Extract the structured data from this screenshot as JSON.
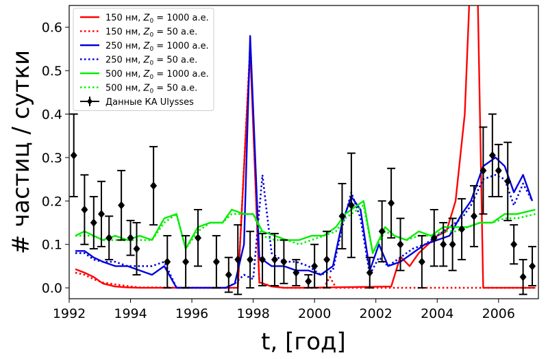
{
  "chart_data": {
    "type": "line",
    "xlabel": "t, [год]",
    "ylabel": "# частиц / сутки",
    "xlim": [
      1992,
      2007.3
    ],
    "ylim": [
      -0.025,
      0.65
    ],
    "xticks": [
      "1992",
      "1994",
      "1996",
      "1998",
      "2000",
      "2002",
      "2004",
      "2006"
    ],
    "yticks": [
      "0.0",
      "0.1",
      "0.2",
      "0.3",
      "0.4",
      "0.5",
      "0.6"
    ],
    "legend_position": "top-left",
    "series": [
      {
        "name": "150 нм, Z0 = 1000 а.е.",
        "label_main": "150 нм, ",
        "label_sub": "0",
        "label_rest": " = 1000 а.е.",
        "color": "#ff0000",
        "style": "solid",
        "x": [
          1992.2,
          1992.5,
          1992.8,
          1993.1,
          1993.5,
          1993.9,
          1994.3,
          1997.5,
          1997.9,
          1998.2,
          1998.6,
          1999,
          1999.6,
          2002.5,
          2002.8,
          2003.1,
          2003.4,
          2003.7,
          2004,
          2004.3,
          2004.6,
          2004.9,
          2005.1,
          2005.3,
          2005.5,
          2007.2
        ],
        "y": [
          0.043,
          0.035,
          0.025,
          0.01,
          0.003,
          0.001,
          0.0,
          0.0,
          0.55,
          0.013,
          0.003,
          0.0,
          0.0,
          0.003,
          0.072,
          0.05,
          0.08,
          0.1,
          0.12,
          0.13,
          0.2,
          0.4,
          0.75,
          0.75,
          0.0,
          0.0
        ]
      },
      {
        "name": "150 нм, Z0 = 50 а.е.",
        "label_main": "150 нм, ",
        "label_sub": "0",
        "label_rest": " = 50 а.е.",
        "color": "#ff0000",
        "style": "dotted",
        "x": [
          1992.2,
          1992.5,
          1992.8,
          1993.1,
          1993.5,
          1993.9,
          1994.3,
          1997.5,
          1997.9,
          1998.2,
          1998.6,
          1999,
          2000.3,
          2000.5,
          2000.7,
          2007.2
        ],
        "y": [
          0.035,
          0.03,
          0.02,
          0.012,
          0.008,
          0.004,
          0.001,
          0.0,
          0.56,
          0.012,
          0.004,
          0.0,
          0.0,
          0.025,
          0.0,
          0.0
        ]
      },
      {
        "name": "250 нм, Z0 = 1000 а.е.",
        "label_main": "250 нм, ",
        "label_sub": "0",
        "label_rest": " = 1000 а.е.",
        "color": "#0000dd",
        "style": "solid",
        "x": [
          1992.2,
          1992.5,
          1992.8,
          1993.1,
          1993.5,
          1993.9,
          1994.3,
          1994.7,
          1995.1,
          1995.5,
          1997.1,
          1997.4,
          1997.7,
          1997.9,
          1998.2,
          1998.6,
          1999,
          1999.4,
          1999.8,
          2000.2,
          2000.6,
          2000.9,
          2001.2,
          2001.5,
          2001.8,
          2002.1,
          2002.4,
          2002.8,
          2003.2,
          2003.6,
          2004.0,
          2004.4,
          2004.8,
          2005.1,
          2005.5,
          2005.9,
          2006.2,
          2006.5,
          2006.8,
          2007.1
        ],
        "y": [
          0.085,
          0.085,
          0.07,
          0.06,
          0.05,
          0.05,
          0.04,
          0.03,
          0.05,
          0.0,
          0.0,
          0.01,
          0.1,
          0.58,
          0.07,
          0.05,
          0.05,
          0.04,
          0.04,
          0.03,
          0.05,
          0.15,
          0.21,
          0.18,
          0.04,
          0.1,
          0.05,
          0.06,
          0.08,
          0.1,
          0.11,
          0.12,
          0.17,
          0.2,
          0.28,
          0.3,
          0.28,
          0.22,
          0.26,
          0.2
        ]
      },
      {
        "name": "250 нм, Z0 = 50 а.е.",
        "label_main": "250 нм, ",
        "label_sub": "0",
        "label_rest": " = 50 а.е.",
        "color": "#0000dd",
        "style": "dotted",
        "x": [
          1992.2,
          1992.5,
          1992.8,
          1993.1,
          1993.5,
          1993.9,
          1994.3,
          1994.7,
          1995.1,
          1995.5,
          1997.1,
          1997.4,
          1997.7,
          1998.0,
          1998.3,
          1998.6,
          1999,
          1999.4,
          1999.8,
          2000.2,
          2000.6,
          2000.9,
          2001.2,
          2001.5,
          2001.8,
          2002.1,
          2002.4,
          2002.8,
          2003.2,
          2003.6,
          2004.0,
          2004.4,
          2004.8,
          2005.1,
          2005.5,
          2005.9,
          2006.2,
          2006.5,
          2006.8,
          2007.1
        ],
        "y": [
          0.08,
          0.08,
          0.065,
          0.06,
          0.06,
          0.05,
          0.05,
          0.05,
          0.06,
          0.0,
          0.0,
          0.01,
          0.03,
          0.02,
          0.26,
          0.08,
          0.06,
          0.06,
          0.05,
          0.03,
          0.04,
          0.14,
          0.22,
          0.16,
          0.03,
          0.07,
          0.05,
          0.07,
          0.09,
          0.1,
          0.12,
          0.14,
          0.16,
          0.19,
          0.25,
          0.26,
          0.25,
          0.19,
          0.24,
          0.2
        ]
      },
      {
        "name": "500 нм, Z0 = 1000 а.е.",
        "label_main": "500 нм, ",
        "label_sub": "0",
        "label_rest": " = 1000 а.е.",
        "color": "#00ee00",
        "style": "solid",
        "x": [
          1992.2,
          1992.5,
          1992.8,
          1993.1,
          1993.5,
          1993.9,
          1994.3,
          1994.7,
          1995.1,
          1995.5,
          1995.8,
          1996.2,
          1996.6,
          1997.0,
          1997.3,
          1997.7,
          1998.0,
          1998.3,
          1998.7,
          1999.1,
          1999.5,
          1999.9,
          2000.3,
          2000.7,
          2001.0,
          2001.4,
          2001.6,
          2001.9,
          2002.3,
          2002.6,
          2003.0,
          2003.4,
          2003.8,
          2004.2,
          2004.6,
          2005.0,
          2005.4,
          2005.8,
          2006.2,
          2006.6,
          2007.2
        ],
        "y": [
          0.12,
          0.13,
          0.12,
          0.11,
          0.12,
          0.11,
          0.12,
          0.11,
          0.16,
          0.17,
          0.09,
          0.14,
          0.15,
          0.15,
          0.18,
          0.17,
          0.17,
          0.13,
          0.12,
          0.11,
          0.11,
          0.12,
          0.12,
          0.14,
          0.17,
          0.19,
          0.2,
          0.08,
          0.14,
          0.12,
          0.11,
          0.13,
          0.12,
          0.14,
          0.14,
          0.14,
          0.15,
          0.15,
          0.17,
          0.17,
          0.18
        ]
      },
      {
        "name": "500 нм, Z0 = 50 а.е.",
        "label_main": "500 нм, ",
        "label_sub": "0",
        "label_rest": " = 50 а.е.",
        "color": "#00ee00",
        "style": "dotted",
        "x": [
          1992.2,
          1992.5,
          1992.8,
          1993.1,
          1993.5,
          1993.9,
          1994.3,
          1994.7,
          1995.1,
          1995.5,
          1995.8,
          1996.2,
          1996.6,
          1997.0,
          1997.3,
          1997.7,
          1998.0,
          1998.3,
          1998.7,
          1999.1,
          1999.5,
          1999.9,
          2000.3,
          2000.7,
          2001.0,
          2001.4,
          2001.6,
          2001.9,
          2002.3,
          2002.6,
          2003.0,
          2003.4,
          2003.8,
          2004.2,
          2004.6,
          2005.0,
          2005.4,
          2005.8,
          2006.2,
          2006.6,
          2007.2
        ],
        "y": [
          0.12,
          0.12,
          0.12,
          0.11,
          0.11,
          0.11,
          0.11,
          0.11,
          0.15,
          0.17,
          0.09,
          0.13,
          0.15,
          0.15,
          0.17,
          0.17,
          0.17,
          0.12,
          0.11,
          0.11,
          0.1,
          0.11,
          0.12,
          0.13,
          0.16,
          0.18,
          0.19,
          0.08,
          0.13,
          0.12,
          0.11,
          0.12,
          0.12,
          0.13,
          0.13,
          0.14,
          0.15,
          0.15,
          0.16,
          0.16,
          0.17
        ]
      },
      {
        "name": "Данные КА Ulysses",
        "label_main": "Данные КА Ulysses",
        "label_sub": "",
        "label_rest": "",
        "color": "#000000",
        "style": "errorbar",
        "x": [
          1992.15,
          1992.5,
          1992.8,
          1993.05,
          1993.3,
          1993.7,
          1994.0,
          1994.2,
          1994.75,
          1995.2,
          1995.8,
          1996.2,
          1996.8,
          1997.2,
          1997.5,
          1997.9,
          1998.3,
          1998.7,
          1999.0,
          1999.4,
          1999.8,
          2000.0,
          2000.4,
          2000.9,
          2001.2,
          2001.8,
          2002.2,
          2002.5,
          2002.8,
          2003.5,
          2003.9,
          2004.2,
          2004.5,
          2004.8,
          2005.2,
          2005.5,
          2005.8,
          2006.0,
          2006.3,
          2006.5,
          2006.8,
          2007.1
        ],
        "y": [
          0.305,
          0.18,
          0.15,
          0.17,
          0.115,
          0.19,
          0.115,
          0.09,
          0.235,
          0.06,
          0.06,
          0.115,
          0.06,
          0.03,
          0.065,
          0.065,
          0.065,
          0.065,
          0.06,
          0.035,
          0.015,
          0.05,
          0.065,
          0.165,
          0.19,
          0.035,
          0.13,
          0.195,
          0.1,
          0.06,
          0.115,
          0.1,
          0.1,
          0.135,
          0.165,
          0.27,
          0.305,
          0.27,
          0.245,
          0.1,
          0.025,
          0.05
        ],
        "err": [
          0.095,
          0.08,
          0.06,
          0.075,
          0.05,
          0.08,
          0.04,
          0.06,
          0.09,
          0.06,
          0.06,
          0.065,
          0.06,
          0.04,
          0.08,
          0.065,
          0.06,
          0.06,
          0.05,
          0.03,
          0.015,
          0.05,
          0.065,
          0.075,
          0.12,
          0.035,
          0.07,
          0.08,
          0.06,
          0.06,
          0.065,
          0.05,
          0.06,
          0.07,
          0.07,
          0.1,
          0.095,
          0.06,
          0.09,
          0.045,
          0.04,
          0.045
        ]
      }
    ]
  }
}
